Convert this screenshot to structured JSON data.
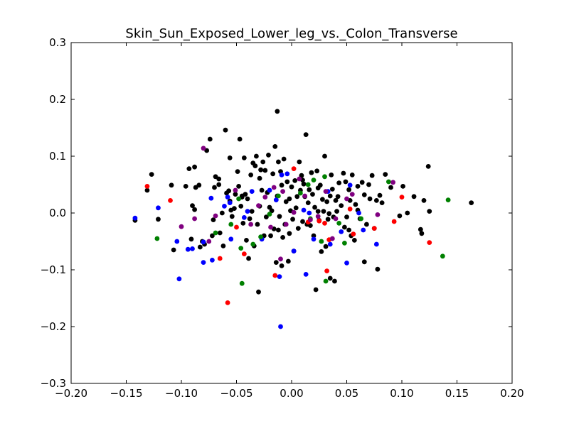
{
  "chart_data": {
    "type": "scatter",
    "title": "Skin_Sun_Exposed_Lower_leg_vs._Colon_Transverse",
    "xlabel": "",
    "ylabel": "",
    "xlim": [
      -0.2,
      0.2
    ],
    "ylim": [
      -0.3,
      0.3
    ],
    "xticks": [
      -0.2,
      -0.15,
      -0.1,
      -0.05,
      0.0,
      0.05,
      0.1,
      0.15,
      0.2
    ],
    "xtick_labels": [
      "−0.20",
      "−0.15",
      "−0.10",
      "−0.05",
      "0.00",
      "0.05",
      "0.10",
      "0.15",
      "0.20"
    ],
    "yticks": [
      -0.3,
      -0.2,
      -0.1,
      0.0,
      0.1,
      0.2,
      0.3
    ],
    "ytick_labels": [
      "−0.3",
      "−0.2",
      "−0.1",
      "0.0",
      "0.1",
      "0.2",
      "0.3"
    ],
    "grid": false,
    "series": [
      {
        "name": "black",
        "color": "#000000",
        "points": [
          [
            -0.142,
            -0.013
          ],
          [
            -0.131,
            0.04
          ],
          [
            -0.127,
            0.068
          ],
          [
            -0.121,
            -0.011
          ],
          [
            -0.109,
            0.049
          ],
          [
            -0.107,
            -0.065
          ],
          [
            -0.096,
            0.047
          ],
          [
            -0.093,
            0.078
          ],
          [
            -0.091,
            -0.046
          ],
          [
            -0.09,
            0.013
          ],
          [
            -0.088,
            0.081
          ],
          [
            -0.088,
            0.006
          ],
          [
            -0.087,
            0.045
          ],
          [
            -0.084,
            0.049
          ],
          [
            -0.083,
            -0.06
          ],
          [
            -0.081,
            -0.05
          ],
          [
            -0.079,
            -0.055
          ],
          [
            -0.077,
            0.11
          ],
          [
            -0.074,
            0.13
          ],
          [
            -0.072,
            -0.04
          ],
          [
            -0.07,
            0.045
          ],
          [
            -0.069,
            0.064
          ],
          [
            -0.066,
            0.06
          ],
          [
            -0.066,
            0.05
          ],
          [
            -0.065,
            -0.035
          ],
          [
            -0.063,
            0.0
          ],
          [
            -0.062,
            -0.058
          ],
          [
            -0.06,
            0.146
          ],
          [
            -0.059,
            0.035
          ],
          [
            -0.057,
            0.039
          ],
          [
            -0.056,
            0.097
          ],
          [
            -0.056,
            0.021
          ],
          [
            -0.055,
            0.005
          ],
          [
            -0.054,
            -0.006
          ],
          [
            -0.052,
            0.008
          ],
          [
            -0.051,
            0.033
          ],
          [
            -0.049,
            0.073
          ],
          [
            -0.048,
            0.047
          ],
          [
            -0.047,
            0.13
          ],
          [
            -0.046,
            0.012
          ],
          [
            -0.045,
            0.03
          ],
          [
            -0.044,
            -0.018
          ],
          [
            -0.043,
            0.097
          ],
          [
            -0.042,
            0.033
          ],
          [
            -0.041,
            -0.048
          ],
          [
            -0.04,
            0.025
          ],
          [
            -0.039,
            -0.08
          ],
          [
            -0.038,
            -0.01
          ],
          [
            -0.037,
            0.067
          ],
          [
            -0.036,
            0.003
          ],
          [
            -0.035,
            0.088
          ],
          [
            -0.034,
            -0.058
          ],
          [
            -0.033,
            0.083
          ],
          [
            -0.032,
            0.1
          ],
          [
            -0.031,
            -0.02
          ],
          [
            -0.03,
            -0.139
          ],
          [
            -0.029,
            0.061
          ],
          [
            -0.028,
            0.076
          ],
          [
            -0.027,
            0.04
          ],
          [
            -0.026,
            0.09
          ],
          [
            -0.025,
            -0.04
          ],
          [
            -0.024,
            0.075
          ],
          [
            -0.023,
            -0.007
          ],
          [
            -0.022,
            0.036
          ],
          [
            -0.021,
            0.102
          ],
          [
            -0.02,
            0.01
          ],
          [
            -0.019,
            -0.04
          ],
          [
            -0.018,
            0.004
          ],
          [
            -0.017,
            0.069
          ],
          [
            -0.016,
            -0.028
          ],
          [
            -0.015,
            0.117
          ],
          [
            -0.014,
            -0.087
          ],
          [
            -0.013,
            0.179
          ],
          [
            -0.013,
            0.03
          ],
          [
            -0.012,
            0.09
          ],
          [
            -0.012,
            -0.03
          ],
          [
            -0.011,
            -0.006
          ],
          [
            -0.01,
            0.073
          ],
          [
            -0.009,
            -0.093
          ],
          [
            -0.009,
            0.049
          ],
          [
            -0.008,
            -0.043
          ],
          [
            -0.007,
            0.095
          ],
          [
            -0.006,
            -0.02
          ],
          [
            -0.005,
            0.02
          ],
          [
            -0.004,
            0.055
          ],
          [
            -0.003,
            -0.085
          ],
          [
            -0.002,
            -0.036
          ],
          [
            -0.001,
            0.004
          ],
          [
            0.0,
            0.046
          ],
          [
            0.001,
            -0.011
          ],
          [
            0.002,
            -0.067
          ],
          [
            0.003,
            0.057
          ],
          [
            0.004,
            0.009
          ],
          [
            0.005,
            0.029
          ],
          [
            0.006,
            -0.027
          ],
          [
            0.007,
            0.09
          ],
          [
            0.008,
            0.04
          ],
          [
            0.009,
            0.066
          ],
          [
            0.01,
            -0.015
          ],
          [
            0.011,
            0.051
          ],
          [
            0.012,
            0.029
          ],
          [
            0.013,
            0.138
          ],
          [
            0.014,
            -0.02
          ],
          [
            0.015,
            0.018
          ],
          [
            0.016,
            0.041
          ],
          [
            0.017,
            -0.022
          ],
          [
            0.018,
            0.071
          ],
          [
            0.019,
            0.033
          ],
          [
            0.02,
            -0.04
          ],
          [
            0.021,
            0.01
          ],
          [
            0.022,
            -0.135
          ],
          [
            0.023,
            0.074
          ],
          [
            0.024,
            0.003
          ],
          [
            0.025,
            -0.013
          ],
          [
            0.026,
            0.049
          ],
          [
            0.027,
            -0.068
          ],
          [
            0.028,
            0.024
          ],
          [
            0.029,
            0.003
          ],
          [
            0.03,
            0.1
          ],
          [
            0.031,
            -0.059
          ],
          [
            0.032,
            0.02
          ],
          [
            0.033,
            -0.011
          ],
          [
            0.034,
            -0.001
          ],
          [
            0.035,
            -0.115
          ],
          [
            0.036,
            0.067
          ],
          [
            0.037,
            0.042
          ],
          [
            0.038,
            -0.007
          ],
          [
            0.039,
            -0.12
          ],
          [
            0.04,
            0.022
          ],
          [
            0.041,
            0.003
          ],
          [
            0.042,
            0.029
          ],
          [
            0.043,
            0.053
          ],
          [
            0.045,
            0.013
          ],
          [
            0.047,
            0.07
          ],
          [
            0.048,
            -0.025
          ],
          [
            0.049,
            0.055
          ],
          [
            0.05,
            -0.007
          ],
          [
            0.052,
            0.041
          ],
          [
            0.053,
            0.022
          ],
          [
            0.054,
            -0.04
          ],
          [
            0.055,
            0.067
          ],
          [
            0.057,
            -0.048
          ],
          [
            0.058,
            0.015
          ],
          [
            0.06,
            0.047
          ],
          [
            0.062,
            -0.01
          ],
          [
            0.064,
            0.054
          ],
          [
            0.066,
            0.032
          ],
          [
            0.068,
            -0.02
          ],
          [
            0.07,
            0.05
          ],
          [
            0.071,
            0.025
          ],
          [
            0.073,
            0.066
          ],
          [
            0.075,
            -0.027
          ],
          [
            0.077,
            0.022
          ],
          [
            0.078,
            -0.099
          ],
          [
            0.08,
            0.031
          ],
          [
            0.082,
            0.018
          ],
          [
            0.085,
            0.068
          ],
          [
            0.09,
            0.045
          ],
          [
            0.098,
            -0.005
          ],
          [
            0.101,
            0.047
          ],
          [
            0.105,
            0.0
          ],
          [
            0.111,
            0.029
          ],
          [
            0.117,
            -0.029
          ],
          [
            0.118,
            -0.036
          ],
          [
            0.12,
            0.022
          ],
          [
            0.124,
            0.082
          ],
          [
            0.125,
            0.003
          ],
          [
            0.163,
            0.018
          ],
          [
            0.066,
            -0.086
          ],
          [
            0.052,
            -0.03
          ],
          [
            -0.071,
            -0.012
          ],
          [
            -0.045,
            0.028
          ],
          [
            0.024,
            0.044
          ],
          [
            -0.002,
            0.025
          ],
          [
            0.035,
            0.03
          ],
          [
            0.01,
            0.058
          ],
          [
            -0.029,
            0.012
          ],
          [
            0.06,
            0.005
          ]
        ]
      },
      {
        "name": "blue",
        "color": "#0000ff",
        "points": [
          [
            -0.142,
            -0.009
          ],
          [
            -0.121,
            0.009
          ],
          [
            -0.104,
            -0.05
          ],
          [
            -0.102,
            -0.116
          ],
          [
            -0.094,
            -0.064
          ],
          [
            -0.09,
            -0.063
          ],
          [
            -0.08,
            -0.087
          ],
          [
            -0.08,
            -0.051
          ],
          [
            -0.073,
            0.026
          ],
          [
            -0.072,
            -0.083
          ],
          [
            -0.061,
            0.012
          ],
          [
            -0.058,
            0.028
          ],
          [
            -0.056,
            0.018
          ],
          [
            -0.055,
            -0.046
          ],
          [
            -0.043,
            -0.008
          ],
          [
            -0.04,
            0.003
          ],
          [
            -0.036,
            0.038
          ],
          [
            -0.027,
            -0.046
          ],
          [
            -0.02,
            0.04
          ],
          [
            -0.014,
            0.023
          ],
          [
            -0.011,
            -0.112
          ],
          [
            -0.01,
            -0.2
          ],
          [
            -0.009,
            0.067
          ],
          [
            -0.004,
            0.069
          ],
          [
            0.002,
            -0.067
          ],
          [
            0.011,
            0.005
          ],
          [
            0.013,
            -0.108
          ],
          [
            0.016,
            0.0
          ],
          [
            0.02,
            -0.046
          ],
          [
            0.033,
            0.038
          ],
          [
            0.035,
            -0.055
          ],
          [
            0.045,
            -0.033
          ],
          [
            0.05,
            -0.088
          ],
          [
            0.053,
            0.049
          ],
          [
            0.061,
            0.0
          ],
          [
            0.065,
            -0.03
          ],
          [
            0.077,
            -0.055
          ]
        ]
      },
      {
        "name": "red",
        "color": "#ff0000",
        "points": [
          [
            -0.131,
            0.047
          ],
          [
            -0.11,
            0.022
          ],
          [
            -0.065,
            -0.08
          ],
          [
            -0.058,
            -0.158
          ],
          [
            -0.05,
            -0.025
          ],
          [
            -0.043,
            -0.072
          ],
          [
            -0.015,
            -0.11
          ],
          [
            0.002,
            0.078
          ],
          [
            0.015,
            -0.016
          ],
          [
            0.025,
            -0.014
          ],
          [
            0.03,
            -0.018
          ],
          [
            0.032,
            -0.102
          ],
          [
            0.034,
            -0.047
          ],
          [
            0.053,
            0.007
          ],
          [
            0.056,
            -0.037
          ],
          [
            0.075,
            -0.027
          ],
          [
            0.093,
            -0.015
          ],
          [
            0.1,
            0.028
          ],
          [
            0.125,
            -0.052
          ]
        ]
      },
      {
        "name": "green",
        "color": "#008000",
        "points": [
          [
            -0.122,
            -0.045
          ],
          [
            -0.069,
            -0.035
          ],
          [
            -0.055,
            -0.02
          ],
          [
            -0.048,
            0.025
          ],
          [
            -0.046,
            -0.062
          ],
          [
            -0.045,
            -0.124
          ],
          [
            -0.035,
            -0.055
          ],
          [
            -0.028,
            -0.042
          ],
          [
            -0.02,
            -0.002
          ],
          [
            -0.012,
            0.03
          ],
          [
            0.008,
            0.035
          ],
          [
            0.015,
            0.05
          ],
          [
            0.02,
            0.058
          ],
          [
            0.027,
            -0.05
          ],
          [
            0.03,
            0.064
          ],
          [
            0.031,
            -0.12
          ],
          [
            0.043,
            -0.018
          ],
          [
            0.048,
            -0.053
          ],
          [
            0.063,
            -0.01
          ],
          [
            0.088,
            0.055
          ],
          [
            0.137,
            -0.076
          ],
          [
            0.142,
            0.023
          ],
          [
            0.017,
            -0.01
          ]
        ]
      },
      {
        "name": "purple",
        "color": "#800080",
        "points": [
          [
            -0.1,
            -0.024
          ],
          [
            -0.088,
            -0.01
          ],
          [
            -0.08,
            0.114
          ],
          [
            -0.075,
            -0.05
          ],
          [
            -0.069,
            -0.005
          ],
          [
            -0.051,
            0.04
          ],
          [
            -0.037,
            -0.02
          ],
          [
            -0.03,
            0.013
          ],
          [
            -0.024,
            0.028
          ],
          [
            -0.019,
            -0.025
          ],
          [
            -0.016,
            0.045
          ],
          [
            -0.01,
            -0.081
          ],
          [
            -0.005,
            -0.02
          ],
          [
            0.002,
            0.001
          ],
          [
            0.007,
            0.06
          ],
          [
            0.012,
            0.03
          ],
          [
            0.017,
            -0.012
          ],
          [
            0.031,
            0.038
          ],
          [
            0.037,
            -0.045
          ],
          [
            0.05,
            0.025
          ],
          [
            0.055,
            0.033
          ],
          [
            0.078,
            -0.003
          ],
          [
            0.092,
            0.054
          ],
          [
            -0.008,
            0.038
          ],
          [
            0.024,
            -0.006
          ],
          [
            0.04,
            -0.01
          ]
        ]
      }
    ]
  }
}
